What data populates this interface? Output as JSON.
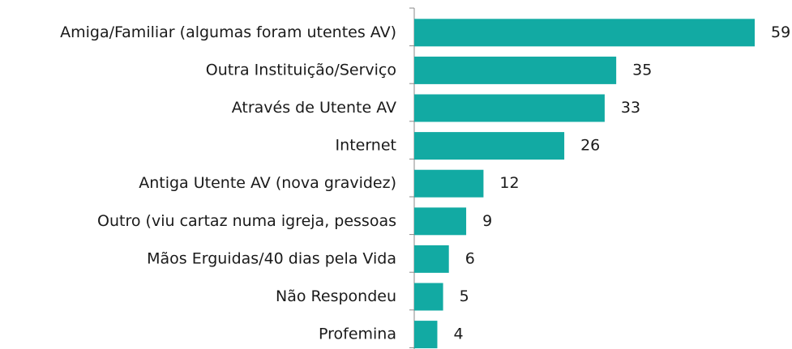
{
  "chart_data": {
    "type": "bar",
    "orientation": "horizontal",
    "categories": [
      "Amiga/Familiar (algumas foram utentes AV)",
      "Outra Instituição/Serviço",
      "Através de Utente AV",
      "Internet",
      "Antiga Utente AV (nova gravidez)",
      "Outro (viu cartaz numa igreja, pessoas",
      "Mãos Erguidas/40 dias pela Vida",
      "Não Respondeu",
      "Profemina"
    ],
    "values": [
      59,
      35,
      33,
      26,
      12,
      9,
      6,
      5,
      4
    ],
    "color": "#12aaa3"
  }
}
